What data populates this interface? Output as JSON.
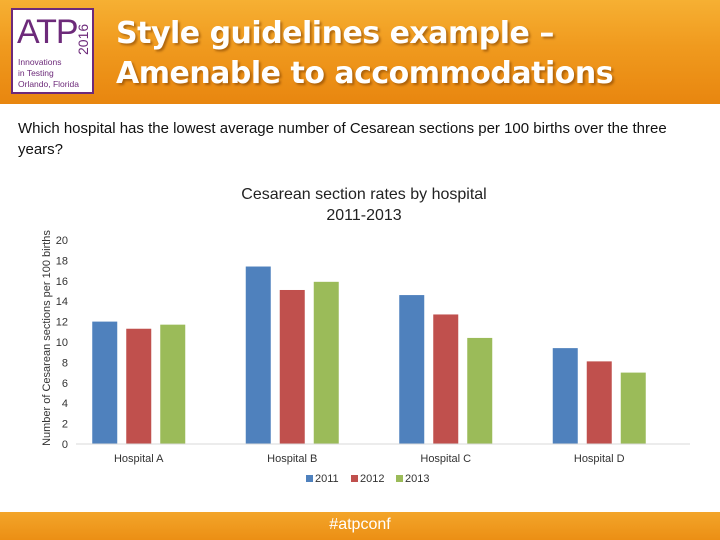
{
  "header": {
    "title_line1": "Style guidelines example –",
    "title_line2": "Amenable to accommodations",
    "logo": {
      "text": "ATP",
      "year": "2016",
      "tagline_line1": "Innovations",
      "tagline_line2": "in Testing",
      "tagline_line3": "Orlando, Florida"
    }
  },
  "question": "Which hospital has the lowest average number of Cesarean sections per 100 births over the three years?",
  "footer": {
    "hashtag": "#atpconf"
  },
  "chart_data": {
    "type": "bar",
    "title_line1": "Cesarean section rates by hospital",
    "title_line2": "2011-2013",
    "ylabel": "Number of Cesarean sections per 100 births",
    "xlabel": "",
    "categories": [
      "Hospital A",
      "Hospital B",
      "Hospital C",
      "Hospital D"
    ],
    "series": [
      {
        "name": "2011",
        "values": [
          12.0,
          17.4,
          14.6,
          9.4
        ],
        "color": "#4f81bd"
      },
      {
        "name": "2012",
        "values": [
          11.3,
          15.1,
          12.7,
          8.1
        ],
        "color": "#c0504d"
      },
      {
        "name": "2013",
        "values": [
          11.7,
          15.9,
          10.4,
          7.0
        ],
        "color": "#9bbb59"
      }
    ],
    "ylim": [
      0,
      20
    ],
    "yticks": [
      "0",
      "2",
      "4",
      "6",
      "8",
      "10",
      "12",
      "14",
      "16",
      "18",
      "20"
    ],
    "grid": false,
    "legend_position": "bottom"
  }
}
